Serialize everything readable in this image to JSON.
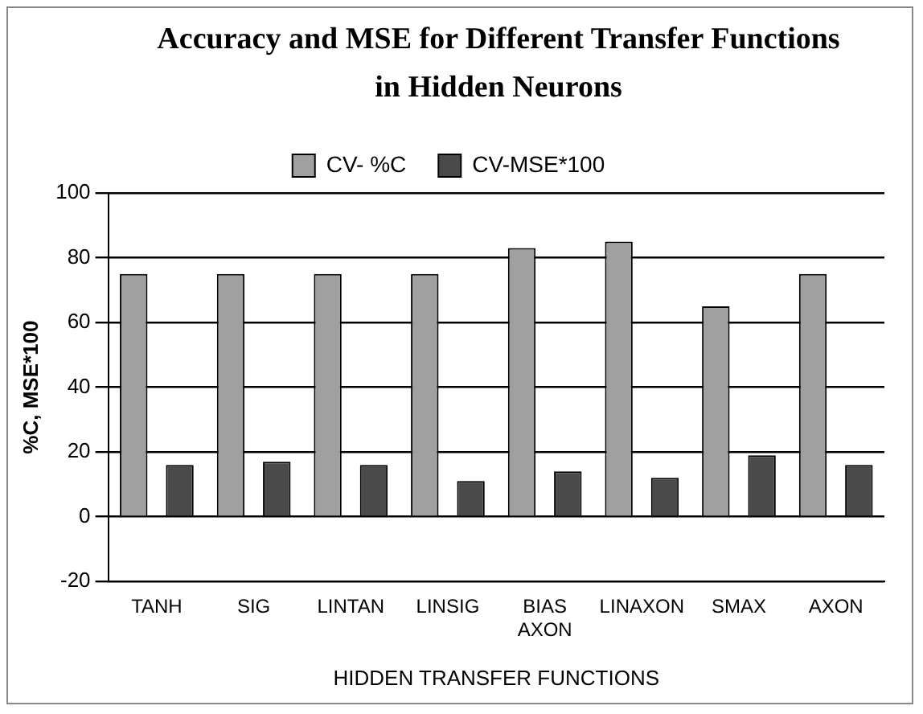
{
  "chart_data": {
    "type": "bar",
    "title": "Accuracy and  MSE for Different Transfer Functions in Hidden Neurons",
    "xlabel": "HIDDEN TRANSFER FUNCTIONS",
    "ylabel": "%C, MSE*100",
    "categories": [
      "TANH",
      "SIG",
      "LINTAN",
      "LINSIG",
      "BIAS AXON",
      "LINAXON",
      "SMAX",
      "AXON"
    ],
    "series": [
      {
        "name": "CV- %C",
        "color": "#a0a0a0",
        "values": [
          75,
          75,
          75,
          75,
          83,
          85,
          65,
          75
        ]
      },
      {
        "name": "CV-MSE*100",
        "color": "#4a4a4a",
        "values": [
          16,
          17,
          16,
          11,
          14,
          12,
          19,
          16
        ]
      }
    ],
    "ylim": [
      -20,
      100
    ],
    "yticks": [
      -20,
      0,
      20,
      40,
      60,
      80,
      100
    ],
    "grid": "y",
    "legend": "top"
  }
}
